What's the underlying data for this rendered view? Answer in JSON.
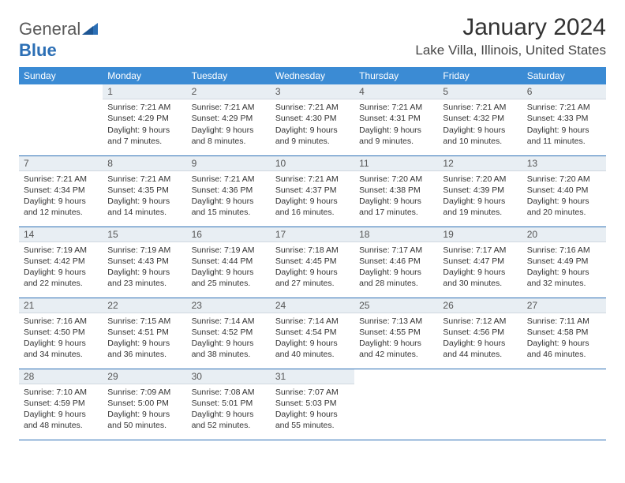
{
  "brand": {
    "general": "General",
    "blue": "Blue"
  },
  "title": "January 2024",
  "location": "Lake Villa, Illinois, United States",
  "colors": {
    "header_bg": "#3b8bd4",
    "header_fg": "#ffffff",
    "daynum_bg": "#e8eef3",
    "border": "#2c6fb5",
    "logo_general": "#5a5a5a",
    "logo_blue": "#2c6fb5"
  },
  "weekdays": [
    "Sunday",
    "Monday",
    "Tuesday",
    "Wednesday",
    "Thursday",
    "Friday",
    "Saturday"
  ],
  "weeks": [
    [
      {
        "day": "",
        "sunrise": "",
        "sunset": "",
        "daylight": ""
      },
      {
        "day": "1",
        "sunrise": "Sunrise: 7:21 AM",
        "sunset": "Sunset: 4:29 PM",
        "daylight": "Daylight: 9 hours and 7 minutes."
      },
      {
        "day": "2",
        "sunrise": "Sunrise: 7:21 AM",
        "sunset": "Sunset: 4:29 PM",
        "daylight": "Daylight: 9 hours and 8 minutes."
      },
      {
        "day": "3",
        "sunrise": "Sunrise: 7:21 AM",
        "sunset": "Sunset: 4:30 PM",
        "daylight": "Daylight: 9 hours and 9 minutes."
      },
      {
        "day": "4",
        "sunrise": "Sunrise: 7:21 AM",
        "sunset": "Sunset: 4:31 PM",
        "daylight": "Daylight: 9 hours and 9 minutes."
      },
      {
        "day": "5",
        "sunrise": "Sunrise: 7:21 AM",
        "sunset": "Sunset: 4:32 PM",
        "daylight": "Daylight: 9 hours and 10 minutes."
      },
      {
        "day": "6",
        "sunrise": "Sunrise: 7:21 AM",
        "sunset": "Sunset: 4:33 PM",
        "daylight": "Daylight: 9 hours and 11 minutes."
      }
    ],
    [
      {
        "day": "7",
        "sunrise": "Sunrise: 7:21 AM",
        "sunset": "Sunset: 4:34 PM",
        "daylight": "Daylight: 9 hours and 12 minutes."
      },
      {
        "day": "8",
        "sunrise": "Sunrise: 7:21 AM",
        "sunset": "Sunset: 4:35 PM",
        "daylight": "Daylight: 9 hours and 14 minutes."
      },
      {
        "day": "9",
        "sunrise": "Sunrise: 7:21 AM",
        "sunset": "Sunset: 4:36 PM",
        "daylight": "Daylight: 9 hours and 15 minutes."
      },
      {
        "day": "10",
        "sunrise": "Sunrise: 7:21 AM",
        "sunset": "Sunset: 4:37 PM",
        "daylight": "Daylight: 9 hours and 16 minutes."
      },
      {
        "day": "11",
        "sunrise": "Sunrise: 7:20 AM",
        "sunset": "Sunset: 4:38 PM",
        "daylight": "Daylight: 9 hours and 17 minutes."
      },
      {
        "day": "12",
        "sunrise": "Sunrise: 7:20 AM",
        "sunset": "Sunset: 4:39 PM",
        "daylight": "Daylight: 9 hours and 19 minutes."
      },
      {
        "day": "13",
        "sunrise": "Sunrise: 7:20 AM",
        "sunset": "Sunset: 4:40 PM",
        "daylight": "Daylight: 9 hours and 20 minutes."
      }
    ],
    [
      {
        "day": "14",
        "sunrise": "Sunrise: 7:19 AM",
        "sunset": "Sunset: 4:42 PM",
        "daylight": "Daylight: 9 hours and 22 minutes."
      },
      {
        "day": "15",
        "sunrise": "Sunrise: 7:19 AM",
        "sunset": "Sunset: 4:43 PM",
        "daylight": "Daylight: 9 hours and 23 minutes."
      },
      {
        "day": "16",
        "sunrise": "Sunrise: 7:19 AM",
        "sunset": "Sunset: 4:44 PM",
        "daylight": "Daylight: 9 hours and 25 minutes."
      },
      {
        "day": "17",
        "sunrise": "Sunrise: 7:18 AM",
        "sunset": "Sunset: 4:45 PM",
        "daylight": "Daylight: 9 hours and 27 minutes."
      },
      {
        "day": "18",
        "sunrise": "Sunrise: 7:17 AM",
        "sunset": "Sunset: 4:46 PM",
        "daylight": "Daylight: 9 hours and 28 minutes."
      },
      {
        "day": "19",
        "sunrise": "Sunrise: 7:17 AM",
        "sunset": "Sunset: 4:47 PM",
        "daylight": "Daylight: 9 hours and 30 minutes."
      },
      {
        "day": "20",
        "sunrise": "Sunrise: 7:16 AM",
        "sunset": "Sunset: 4:49 PM",
        "daylight": "Daylight: 9 hours and 32 minutes."
      }
    ],
    [
      {
        "day": "21",
        "sunrise": "Sunrise: 7:16 AM",
        "sunset": "Sunset: 4:50 PM",
        "daylight": "Daylight: 9 hours and 34 minutes."
      },
      {
        "day": "22",
        "sunrise": "Sunrise: 7:15 AM",
        "sunset": "Sunset: 4:51 PM",
        "daylight": "Daylight: 9 hours and 36 minutes."
      },
      {
        "day": "23",
        "sunrise": "Sunrise: 7:14 AM",
        "sunset": "Sunset: 4:52 PM",
        "daylight": "Daylight: 9 hours and 38 minutes."
      },
      {
        "day": "24",
        "sunrise": "Sunrise: 7:14 AM",
        "sunset": "Sunset: 4:54 PM",
        "daylight": "Daylight: 9 hours and 40 minutes."
      },
      {
        "day": "25",
        "sunrise": "Sunrise: 7:13 AM",
        "sunset": "Sunset: 4:55 PM",
        "daylight": "Daylight: 9 hours and 42 minutes."
      },
      {
        "day": "26",
        "sunrise": "Sunrise: 7:12 AM",
        "sunset": "Sunset: 4:56 PM",
        "daylight": "Daylight: 9 hours and 44 minutes."
      },
      {
        "day": "27",
        "sunrise": "Sunrise: 7:11 AM",
        "sunset": "Sunset: 4:58 PM",
        "daylight": "Daylight: 9 hours and 46 minutes."
      }
    ],
    [
      {
        "day": "28",
        "sunrise": "Sunrise: 7:10 AM",
        "sunset": "Sunset: 4:59 PM",
        "daylight": "Daylight: 9 hours and 48 minutes."
      },
      {
        "day": "29",
        "sunrise": "Sunrise: 7:09 AM",
        "sunset": "Sunset: 5:00 PM",
        "daylight": "Daylight: 9 hours and 50 minutes."
      },
      {
        "day": "30",
        "sunrise": "Sunrise: 7:08 AM",
        "sunset": "Sunset: 5:01 PM",
        "daylight": "Daylight: 9 hours and 52 minutes."
      },
      {
        "day": "31",
        "sunrise": "Sunrise: 7:07 AM",
        "sunset": "Sunset: 5:03 PM",
        "daylight": "Daylight: 9 hours and 55 minutes."
      },
      {
        "day": "",
        "sunrise": "",
        "sunset": "",
        "daylight": ""
      },
      {
        "day": "",
        "sunrise": "",
        "sunset": "",
        "daylight": ""
      },
      {
        "day": "",
        "sunrise": "",
        "sunset": "",
        "daylight": ""
      }
    ]
  ]
}
